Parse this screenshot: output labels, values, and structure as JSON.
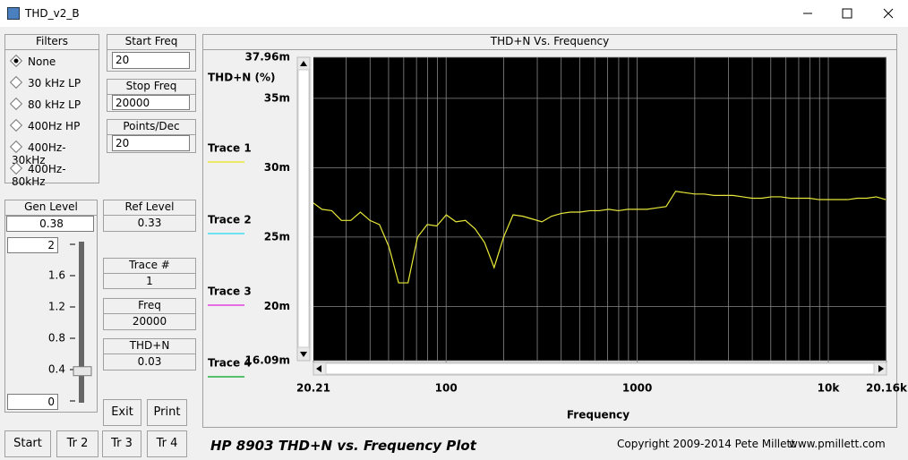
{
  "window": {
    "title": "THD_v2_B"
  },
  "filters": {
    "title": "Filters",
    "options": [
      "None",
      "30 kHz LP",
      "80 kHz LP",
      "400Hz HP",
      "400Hz-30kHz",
      "400Hz-80kHz"
    ],
    "selected": 0
  },
  "start_freq": {
    "label": "Start Freq",
    "value": "20"
  },
  "stop_freq": {
    "label": "Stop Freq",
    "value": "20000"
  },
  "points_dec": {
    "label": "Points/Dec",
    "value": "20"
  },
  "gen_level": {
    "label": "Gen Level",
    "value": 0.38,
    "max": 2,
    "min": 0,
    "ticks": [
      1.6,
      1.2,
      0.8,
      0.4
    ]
  },
  "ref_level": {
    "label": "Ref Level",
    "value": "0.33"
  },
  "trace_num": {
    "label": "Trace #",
    "value": "1"
  },
  "freq": {
    "label": "Freq",
    "value": "20000"
  },
  "thdn": {
    "label": "THD+N",
    "value": "0.03"
  },
  "buttons": [
    "Exit",
    "Print",
    "Start",
    "Tr 2",
    "Tr 3",
    "Tr 4"
  ],
  "footer": {
    "title": "HP 8903 THD+N vs. Frequency Plot",
    "copyright": "Copyright 2009-2014 Pete Millett",
    "url": "www.pmillett.com"
  },
  "plot": {
    "type": "line",
    "title": "THD+N Vs. Frequency",
    "ylabel": "THD+N (%)",
    "xlabel": "Frequency",
    "xlog": true,
    "xlim": [
      20.21,
      20160
    ],
    "ylim": [
      16.09,
      37.96
    ],
    "xticks": [
      20.21,
      100,
      1000,
      {
        "value": 10000,
        "label": "10k"
      },
      {
        "value": 20160,
        "label": "20.16k"
      }
    ],
    "xgrid": [
      30,
      40,
      50,
      60,
      70,
      80,
      90,
      100,
      200,
      300,
      400,
      500,
      600,
      700,
      800,
      900,
      1000,
      2000,
      3000,
      4000,
      5000,
      6000,
      7000,
      8000,
      9000,
      10000,
      20000
    ],
    "yticks": [
      {
        "value": 37.96,
        "label": "37.96m"
      },
      {
        "value": 35,
        "label": "35m"
      },
      {
        "value": 30,
        "label": "30m"
      },
      {
        "value": 25,
        "label": "25m"
      },
      {
        "value": 20,
        "label": "20m"
      },
      {
        "value": 16.09,
        "label": "16.09m"
      }
    ],
    "x": [
      20,
      22.4,
      25.2,
      28.3,
      31.7,
      35.6,
      39.9,
      44.8,
      50.2,
      56.4,
      63.2,
      70.9,
      79.6,
      89.3,
      100.2,
      112.5,
      126.2,
      141.6,
      158.9,
      178.3,
      200,
      224,
      252,
      283,
      317,
      356,
      399,
      448,
      502,
      564,
      632,
      709,
      796,
      893,
      1002,
      1125,
      1262,
      1416,
      1589,
      1783,
      2000,
      2244,
      2518,
      2825,
      3170,
      3557,
      3991,
      4477,
      5024,
      5637,
      6325,
      7096,
      7962,
      8934,
      10024,
      11247,
      12619,
      14159,
      15887,
      17825,
      20000
    ],
    "series": [
      {
        "name": "Trace 1",
        "color": "#e8e83a",
        "values": [
          27.5,
          27.0,
          26.9,
          26.2,
          26.2,
          26.8,
          26.2,
          25.9,
          24.3,
          21.7,
          21.7,
          25.0,
          25.9,
          25.8,
          26.6,
          26.1,
          26.2,
          25.6,
          24.6,
          22.8,
          25.0,
          26.6,
          26.5,
          26.3,
          26.1,
          26.5,
          26.7,
          26.8,
          26.8,
          26.9,
          26.9,
          27.0,
          26.9,
          27.0,
          27.0,
          27.0,
          27.1,
          27.2,
          28.3,
          28.2,
          28.1,
          28.1,
          28.0,
          28.0,
          28.0,
          27.9,
          27.8,
          27.8,
          27.9,
          27.9,
          27.8,
          27.8,
          27.8,
          27.7,
          27.7,
          27.7,
          27.7,
          27.8,
          27.8,
          27.9,
          27.7
        ]
      },
      {
        "name": "Trace 2",
        "color": "#40e0f0",
        "values": []
      },
      {
        "name": "Trace 3",
        "color": "#e040e0",
        "values": []
      },
      {
        "name": "Trace 4",
        "color": "#20b040",
        "values": []
      }
    ]
  }
}
